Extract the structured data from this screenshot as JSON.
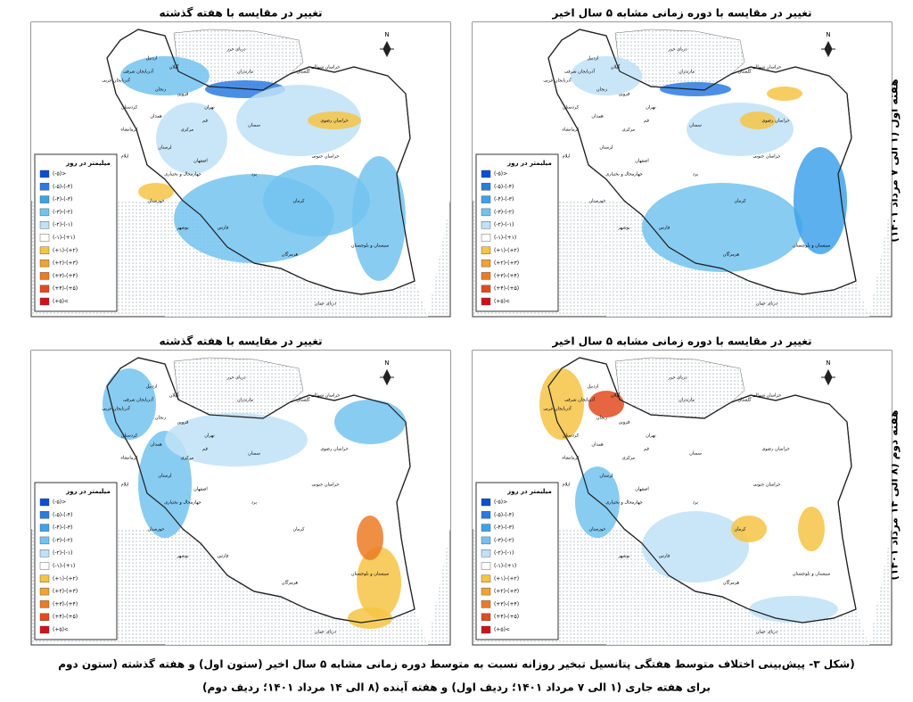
{
  "panels": [
    {
      "title": "تغییر در مقایسه با هفته گذشته"
    },
    {
      "title": "تغییر در مقایسه با دوره زمانی مشابه ۵ سال اخیر"
    },
    {
      "title": "تغییر در مقایسه با هفته گذشته"
    },
    {
      "title": "تغییر در مقایسه با دوره زمانی مشابه ۵ سال اخیر"
    }
  ],
  "row_labels": [
    "هفته اول (۱ الی ۷ مرداد ۱۴۰۱)",
    "هفته دوم (۸ الی ۱۴ مرداد ۱۴۰۱)"
  ],
  "legend": {
    "title": "میلیمتر در روز",
    "items": [
      {
        "label": "(-۵)>",
        "color": "#0a4fd0"
      },
      {
        "label": "(-۵)-(-۴)",
        "color": "#2b7be0"
      },
      {
        "label": "(-۴)-(-۳)",
        "color": "#3ea2ea"
      },
      {
        "label": "(-۳)-(-۲)",
        "color": "#73c3f0"
      },
      {
        "label": "(-۲)-(-۱)",
        "color": "#bfe2f7"
      },
      {
        "label": "(-۱)-(+۱)",
        "color": "#ffffff"
      },
      {
        "label": "(+۱)-(+۲)",
        "color": "#f6c445"
      },
      {
        "label": "(+۲)-(+۳)",
        "color": "#f1a234"
      },
      {
        "label": "(+۳)-(+۴)",
        "color": "#ec7b26"
      },
      {
        "label": "(+۴)-(+۵)",
        "color": "#e04b1f"
      },
      {
        "label": "(+۵)<",
        "color": "#d0111a"
      }
    ]
  },
  "compass": "N",
  "places": [
    "دریای خزر",
    "دریای عمان",
    "خراسان شمالی",
    "خراسان رضوی",
    "خراسان جنوبی",
    "سمنان",
    "تهران",
    "اصفهان",
    "یزد",
    "کرمان",
    "فارس",
    "هرمزگان",
    "سیستان و بلوچستان",
    "خوزستان",
    "بوشهر",
    "لرستان",
    "کرمانشاه",
    "همدان",
    "مرکزی",
    "قم",
    "قزوین",
    "زنجان",
    "گیلان",
    "مازندران",
    "گلستان",
    "اردبیل",
    "آذربایجان شرقی",
    "آذربایجان غربی",
    "کردستان",
    "ایلام",
    "چهارمحال و بختیاری"
  ],
  "caption": [
    "(شکل ۳- پیش‌بینی اختلاف متوسط هفتگی پتانسیل تبخیر روزانه نسبت به متوسط دوره زمانی مشابه ۵ سال اخیر (ستون اول) و هفته گذشته (ستون دوم",
    "برای هفته جاری (۱ الی ۷ مرداد ۱۴۰۱؛ ردیف اول) و هفته آینده (۸ الی ۱۴ مرداد ۱۴۰۱؛ ردیف دوم)"
  ]
}
